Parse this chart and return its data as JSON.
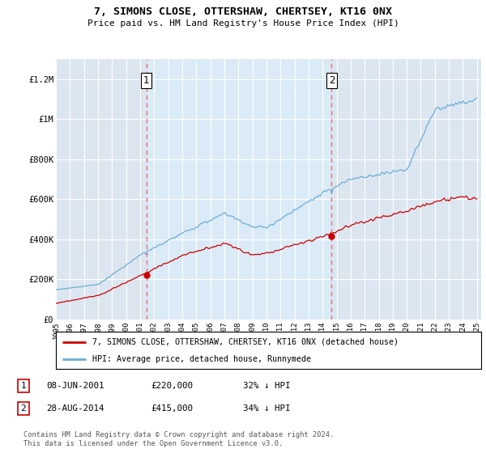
{
  "title": "7, SIMONS CLOSE, OTTERSHAW, CHERTSEY, KT16 0NX",
  "subtitle": "Price paid vs. HM Land Registry's House Price Index (HPI)",
  "legend_line1": "7, SIMONS CLOSE, OTTERSHAW, CHERTSEY, KT16 0NX (detached house)",
  "legend_line2": "HPI: Average price, detached house, Runnymede",
  "footer": "Contains HM Land Registry data © Crown copyright and database right 2024.\nThis data is licensed under the Open Government Licence v3.0.",
  "transaction1_label": "1",
  "transaction1_date": "08-JUN-2001",
  "transaction1_price": "£220,000",
  "transaction1_hpi": "32% ↓ HPI",
  "transaction2_label": "2",
  "transaction2_date": "28-AUG-2014",
  "transaction2_price": "£415,000",
  "transaction2_hpi": "34% ↓ HPI",
  "sale1_year": 2001.44,
  "sale1_price": 220000,
  "sale2_year": 2014.65,
  "sale2_price": 415000,
  "hpi_color": "#6baed6",
  "sale_color": "#cc0000",
  "vline_color": "#e07070",
  "shade_color": "#daeaf7",
  "background_color": "#dce6f1",
  "plot_bg_color": "#dce6f1",
  "ylim_min": 0,
  "ylim_max": 1300000,
  "yticks": [
    0,
    200000,
    400000,
    600000,
    800000,
    1000000,
    1200000
  ],
  "ytick_labels": [
    "£0",
    "£200K",
    "£400K",
    "£600K",
    "£800K",
    "£1M",
    "£1.2M"
  ],
  "year_start": 1995,
  "year_end": 2025
}
